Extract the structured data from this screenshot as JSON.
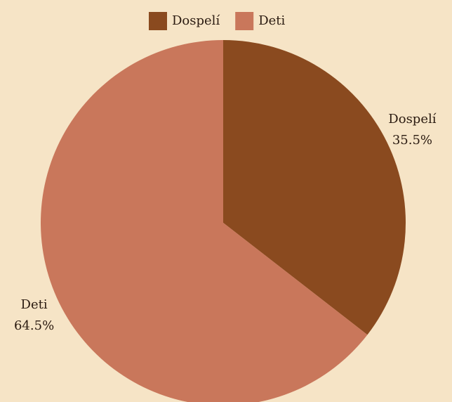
{
  "chart_data": {
    "type": "pie",
    "categories": [
      "Dospelí",
      "Deti"
    ],
    "values": [
      35.5,
      64.5
    ],
    "value_labels": [
      "35.5%",
      "64.5%"
    ],
    "colors": [
      "#8a4a1f",
      "#c9775b"
    ],
    "legend": "top"
  }
}
